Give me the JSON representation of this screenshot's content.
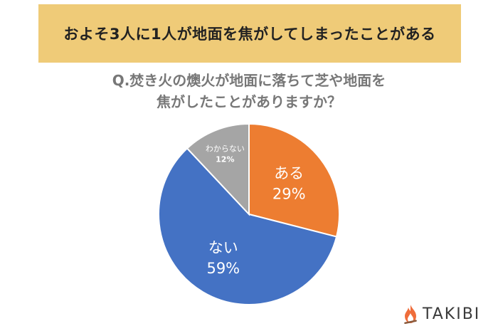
{
  "header": {
    "title": "およそ3人に1人が地面を焦がしてしまったことがある"
  },
  "question": {
    "line1": "Q.焚き火の燠火が地面に落ちて芝や地面を",
    "line2": "焦がしたことがありますか？"
  },
  "chart_data": {
    "type": "pie",
    "start_angle_deg": 0,
    "direction": "clockwise",
    "slices": [
      {
        "label": "ある",
        "value": 29,
        "value_label": "29%",
        "color": "#ed7d31",
        "label_color": "#ffffff"
      },
      {
        "label": "ない",
        "value": 59,
        "value_label": "59%",
        "color": "#4472c4",
        "label_color": "#ffffff"
      },
      {
        "label": "わからない",
        "value": 12,
        "value_label": "12%",
        "color": "#a5a5a5",
        "label_color": "#ffffff"
      }
    ]
  },
  "brand": {
    "name": "TAKIBI",
    "icon": "flame-icon",
    "icon_color": "#ef6d3b"
  }
}
